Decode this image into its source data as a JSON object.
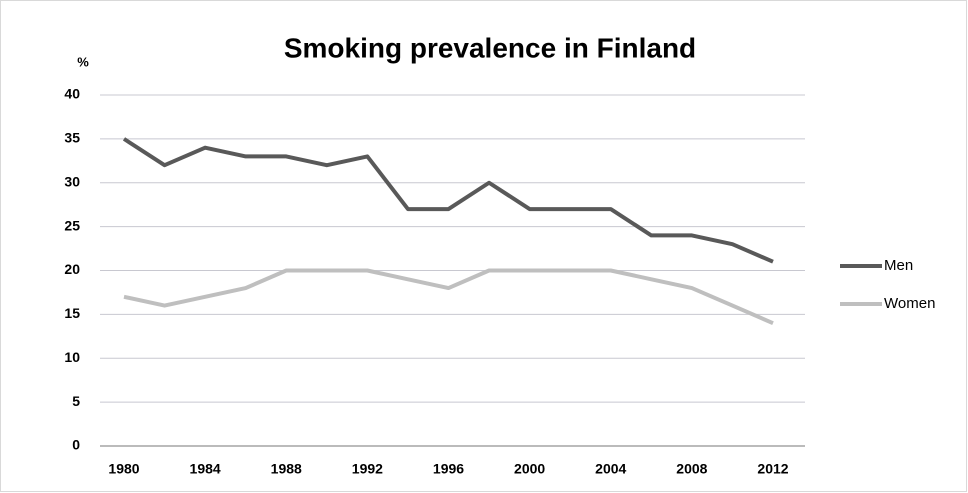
{
  "chart_data": {
    "type": "line",
    "title": "Smoking prevalence in Finland",
    "y_label": "%",
    "x": [
      1980,
      1982,
      1984,
      1986,
      1988,
      1990,
      1992,
      1994,
      1996,
      1998,
      2000,
      2002,
      2004,
      2006,
      2008,
      2010,
      2012
    ],
    "xlim": [
      1980,
      2012
    ],
    "xticks": [
      1980,
      1984,
      1988,
      1992,
      1996,
      2000,
      2004,
      2008,
      2012
    ],
    "ylim": [
      0,
      40
    ],
    "yticks": [
      0,
      5,
      10,
      15,
      20,
      25,
      30,
      35,
      40
    ],
    "grid": true,
    "legend": "right",
    "series": [
      {
        "name": "Men",
        "color": "#595959",
        "values": [
          35,
          32,
          34,
          33,
          33,
          32,
          33,
          27,
          27,
          30,
          27,
          27,
          27,
          24,
          24,
          23,
          21
        ]
      },
      {
        "name": "Women",
        "color": "#bfbfbf",
        "values": [
          17,
          16,
          17,
          18,
          20,
          20,
          20,
          19,
          18,
          20,
          20,
          20,
          20,
          19,
          18,
          16,
          14
        ]
      }
    ]
  }
}
